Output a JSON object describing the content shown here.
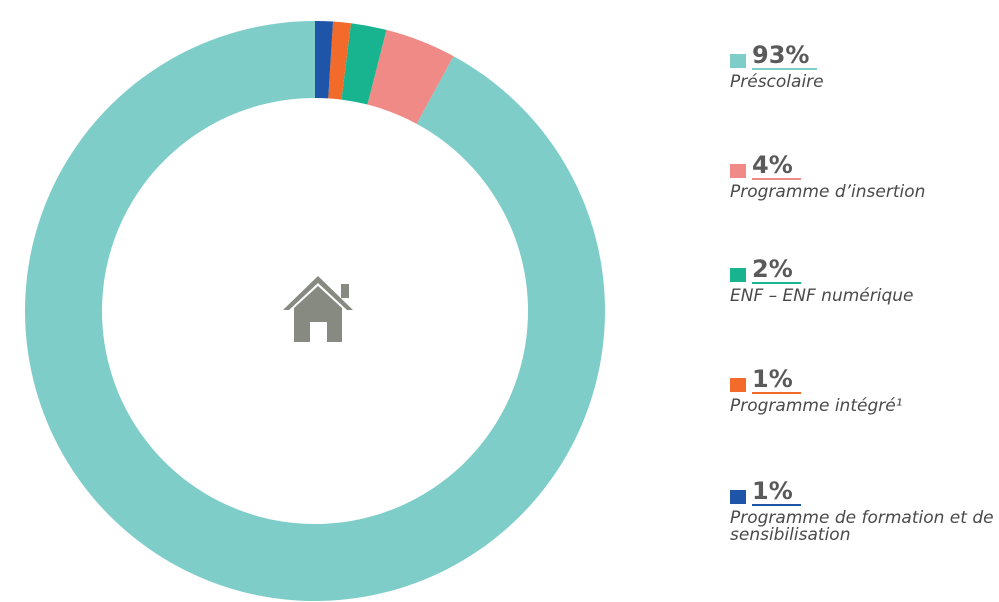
{
  "chart_data": {
    "type": "donut",
    "series": [
      {
        "name": "Préscolaire",
        "color": "#7ecdc9",
        "values": [
          93
        ],
        "value_labels": [
          "93%"
        ]
      },
      {
        "name": "Programme d’insertion",
        "color": "#ef8a86",
        "values": [
          4
        ],
        "value_labels": [
          "4%"
        ]
      },
      {
        "name": "ENF – ENF numérique",
        "color": "#18b48f",
        "values": [
          2
        ],
        "value_labels": [
          "2%"
        ]
      },
      {
        "name": "Programme intégré¹",
        "color": "#f26b2a",
        "values": [
          1
        ],
        "value_labels": [
          "1%"
        ]
      },
      {
        "name": "Programme de formation et de sensibilisation",
        "color": "#1f55a8",
        "values": [
          1
        ],
        "value_labels": [
          "1%"
        ]
      }
    ]
  }
}
